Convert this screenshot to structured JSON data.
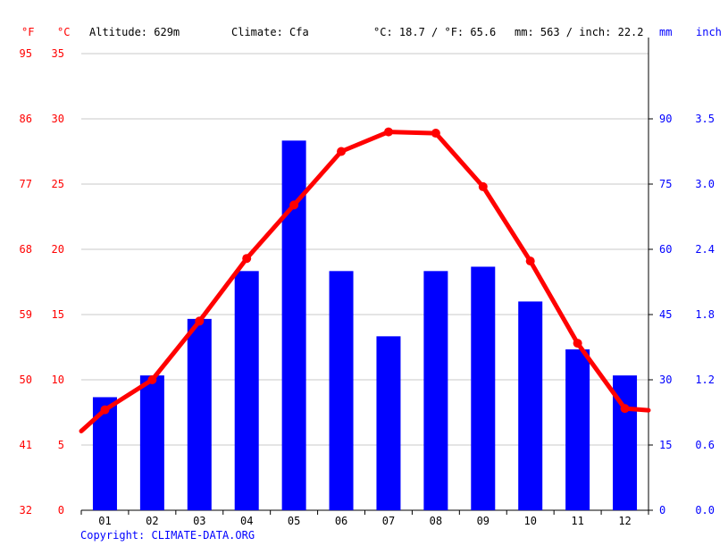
{
  "header": {
    "altitude": "Altitude: 629m",
    "climate": "Climate: Cfa",
    "avg_temp": "°C: 18.7 / °F: 65.6",
    "precip": "mm: 563 / inch: 22.2"
  },
  "units": {
    "fahrenheit": "°F",
    "celsius": "°C",
    "mm": "mm",
    "inch": "inch"
  },
  "copyright": "Copyright: CLIMATE-DATA.ORG",
  "colors": {
    "temperature": "#ff0000",
    "precipitation": "#0000ff",
    "grid": "#c8c8c8",
    "axis": "#000000"
  },
  "chart_data": {
    "type": "bar",
    "categories": [
      "01",
      "02",
      "03",
      "04",
      "05",
      "06",
      "07",
      "08",
      "09",
      "10",
      "11",
      "12"
    ],
    "series": [
      {
        "kind": "bar",
        "axis": "mm",
        "values": [
          26,
          31,
          44,
          55,
          85,
          55,
          40,
          55,
          56,
          48,
          37,
          31
        ]
      },
      {
        "kind": "line",
        "axis": "celsius",
        "values": [
          7.7,
          10.0,
          14.5,
          19.3,
          23.4,
          27.5,
          29.0,
          28.9,
          24.8,
          19.1,
          12.8,
          7.8
        ]
      }
    ],
    "grid": true,
    "axes": {
      "celsius": {
        "range": [
          0,
          35
        ],
        "ticks": [
          "0",
          "5",
          "10",
          "15",
          "20",
          "25",
          "30",
          "35"
        ]
      },
      "fahrenheit": {
        "range": [
          32,
          95
        ],
        "ticks": [
          "32",
          "41",
          "50",
          "59",
          "68",
          "77",
          "86",
          "95"
        ]
      },
      "mm": {
        "range": [
          0,
          105
        ],
        "ticks": [
          "0",
          "15",
          "30",
          "45",
          "60",
          "75",
          "90"
        ]
      },
      "inch": {
        "ticks": [
          "0.0",
          "0.6",
          "1.2",
          "1.8",
          "2.4",
          "3.0",
          "3.5"
        ]
      }
    }
  }
}
